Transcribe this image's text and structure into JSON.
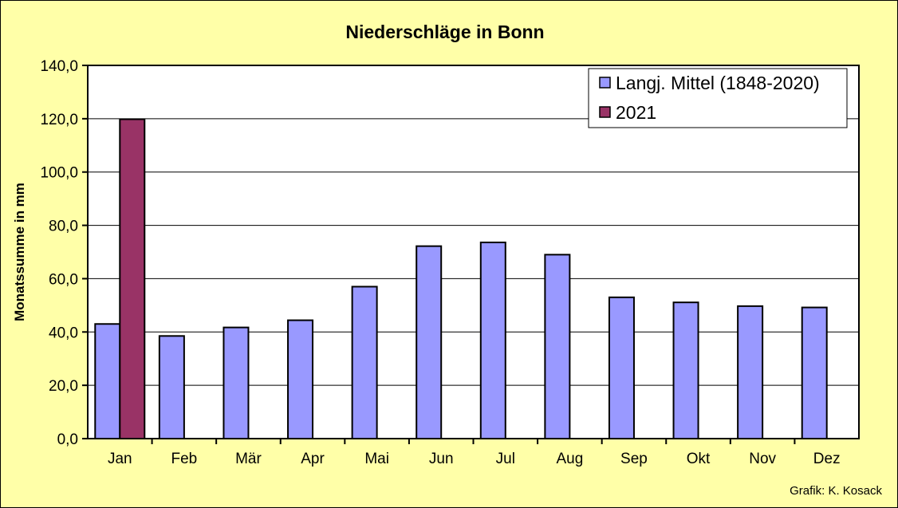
{
  "chart_data": {
    "type": "bar",
    "title": "Niederschläge in Bonn",
    "xlabel": "",
    "ylabel": "Monatssumme in mm",
    "ylim": [
      0,
      140
    ],
    "yticks": [
      "0,0",
      "20,0",
      "40,0",
      "60,0",
      "80,0",
      "100,0",
      "120,0",
      "140,0"
    ],
    "ytick_values": [
      0,
      20,
      40,
      60,
      80,
      100,
      120,
      140
    ],
    "grid": true,
    "legend_position": "top-right",
    "categories": [
      "Jan",
      "Feb",
      "Mär",
      "Apr",
      "Mai",
      "Jun",
      "Jul",
      "Aug",
      "Sep",
      "Okt",
      "Nov",
      "Dez"
    ],
    "series": [
      {
        "name": "Langj. Mittel (1848-2020)",
        "color": "#9999ff",
        "values": [
          43.0,
          38.5,
          41.7,
          44.4,
          57.0,
          72.2,
          73.6,
          69.0,
          53.0,
          51.1,
          49.7,
          49.2
        ]
      },
      {
        "name": "2021",
        "color": "#993366",
        "values": [
          119.8,
          null,
          null,
          null,
          null,
          null,
          null,
          null,
          null,
          null,
          null,
          null
        ]
      }
    ],
    "annotations": [
      "Grafik:  K. Kosack"
    ]
  }
}
